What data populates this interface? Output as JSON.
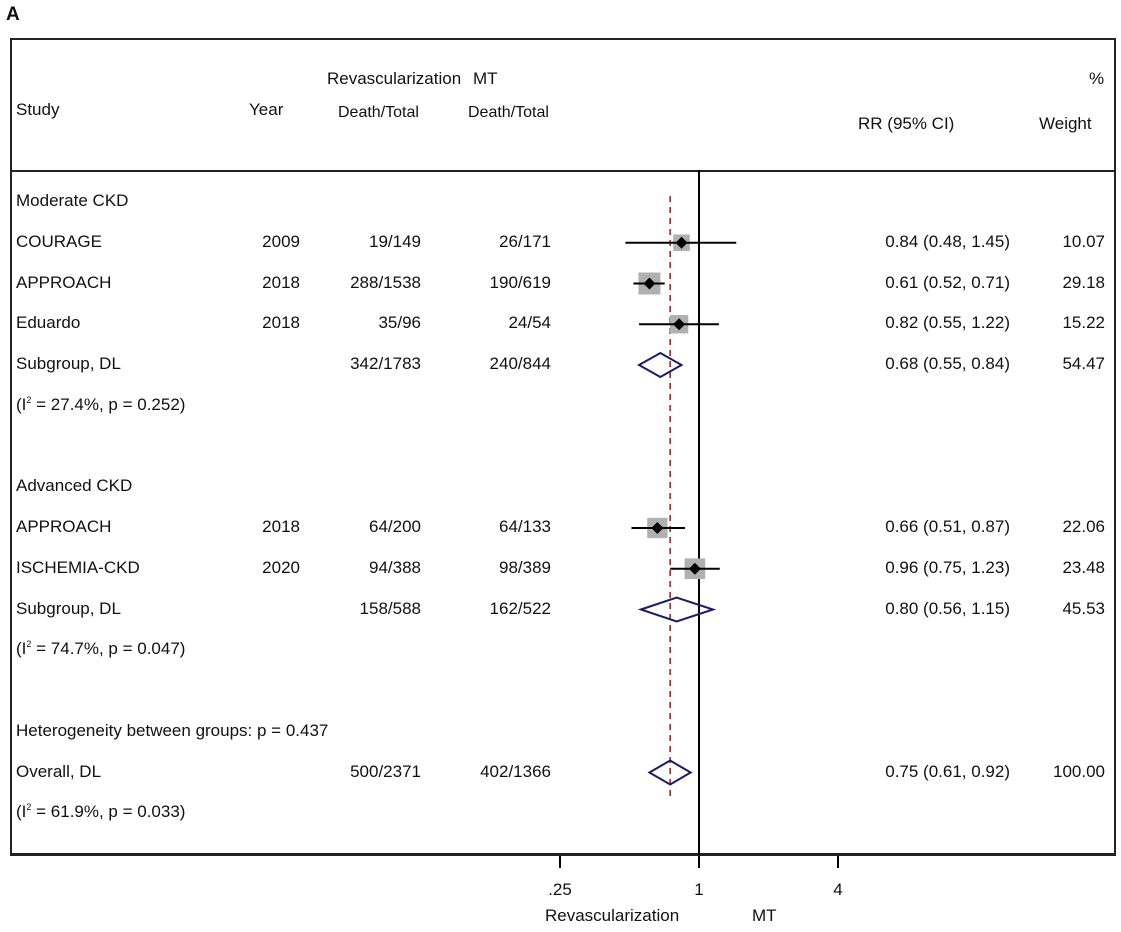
{
  "panel_label": "A",
  "header": {
    "study": "Study",
    "year": "Year",
    "revasc": "Revascularization",
    "mt": "MT",
    "death_total_1": "Death/Total",
    "death_total_2": "Death/Total",
    "rr": "RR (95% CI)",
    "pct": "%",
    "weight": "Weight"
  },
  "colors": {
    "ci_line": "#000000",
    "box": "#b0b0b0",
    "diamond": "#1a1a6e",
    "ref_line": "#9b2a2a"
  },
  "chart_data": {
    "type": "forest",
    "scale": "log2",
    "xlim": [
      0.25,
      4
    ],
    "ticks": [
      {
        "value": 0.25,
        "label": ".25"
      },
      {
        "value": 1,
        "label": "1"
      },
      {
        "value": 4,
        "label": "4"
      }
    ],
    "xlabel_left": "Revascularization",
    "xlabel_right": "MT",
    "overall_estimate": 0.75,
    "rows": [
      {
        "kind": "group",
        "label": "Moderate CKD"
      },
      {
        "kind": "study",
        "label": "COURAGE",
        "year": "2009",
        "revasc": "19/149",
        "mt": "26/171",
        "rr": 0.84,
        "lo": 0.48,
        "hi": 1.45,
        "rr_text": "0.84 (0.48, 1.45)",
        "weight": "10.07"
      },
      {
        "kind": "study",
        "label": "APPROACH",
        "year": "2018",
        "revasc": "288/1538",
        "mt": "190/619",
        "rr": 0.61,
        "lo": 0.52,
        "hi": 0.71,
        "rr_text": "0.61 (0.52, 0.71)",
        "weight": "29.18"
      },
      {
        "kind": "study",
        "label": "Eduardo",
        "year": "2018",
        "revasc": "35/96",
        "mt": "24/54",
        "rr": 0.82,
        "lo": 0.55,
        "hi": 1.22,
        "rr_text": "0.82 (0.55, 1.22)",
        "weight": "15.22"
      },
      {
        "kind": "subgroup",
        "label": "Subgroup, DL",
        "revasc": "342/1783",
        "mt": "240/844",
        "rr": 0.68,
        "lo": 0.55,
        "hi": 0.84,
        "rr_text": "0.68 (0.55, 0.84)",
        "weight": "54.47"
      },
      {
        "kind": "het",
        "pre": "(I",
        "sup": "2",
        "post": " = 27.4%, p = 0.252)"
      },
      {
        "kind": "blank"
      },
      {
        "kind": "group",
        "label": "Advanced CKD"
      },
      {
        "kind": "study",
        "label": "APPROACH",
        "year": "2018",
        "revasc": "64/200",
        "mt": "64/133",
        "rr": 0.66,
        "lo": 0.51,
        "hi": 0.87,
        "rr_text": "0.66 (0.51, 0.87)",
        "weight": "22.06"
      },
      {
        "kind": "study",
        "label": "ISCHEMIA-CKD",
        "year": "2020",
        "revasc": "94/388",
        "mt": "98/389",
        "rr": 0.96,
        "lo": 0.75,
        "hi": 1.23,
        "rr_text": "0.96 (0.75, 1.23)",
        "weight": "23.48"
      },
      {
        "kind": "subgroup",
        "label": "Subgroup, DL",
        "revasc": "158/588",
        "mt": "162/522",
        "rr": 0.8,
        "lo": 0.56,
        "hi": 1.15,
        "rr_text": "0.80 (0.56, 1.15)",
        "weight": "45.53"
      },
      {
        "kind": "het",
        "pre": "(I",
        "sup": "2",
        "post": " = 74.7%, p = 0.047)"
      },
      {
        "kind": "blank"
      },
      {
        "kind": "group",
        "label": "Heterogeneity between groups: p = 0.437"
      },
      {
        "kind": "subgroup",
        "label": "Overall, DL",
        "revasc": "500/2371",
        "mt": "402/1366",
        "rr": 0.75,
        "lo": 0.61,
        "hi": 0.92,
        "rr_text": "0.75 (0.61, 0.92)",
        "weight": "100.00"
      },
      {
        "kind": "het",
        "pre": "(I",
        "sup": "2",
        "post": " = 61.9%, p = 0.033)"
      }
    ]
  }
}
